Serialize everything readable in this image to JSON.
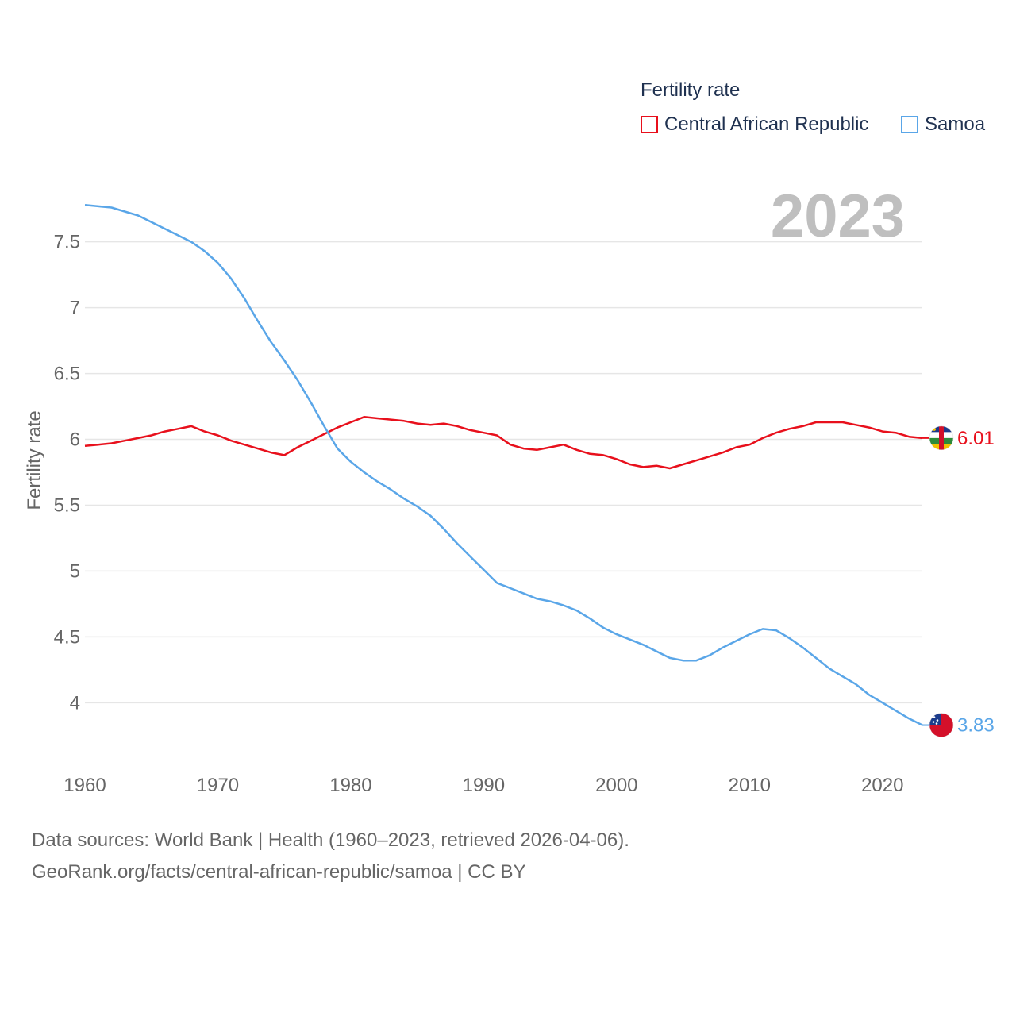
{
  "legend": {
    "title": "Fertility rate",
    "items": [
      {
        "label": "Central African Republic",
        "color": "#e8101c"
      },
      {
        "label": "Samoa",
        "color": "#5aa6e8"
      }
    ]
  },
  "footer": {
    "line1": "Data sources: World Bank | Health (1960–2023, retrieved 2026-04-06).",
    "line2": "GeoRank.org/facts/central-african-republic/samoa | CC BY"
  },
  "chart_data": {
    "type": "line",
    "year_label": "2023",
    "ylabel": "Fertility rate",
    "xlabel": "",
    "xlim": [
      1960,
      2023
    ],
    "ylim": [
      3.55,
      7.95
    ],
    "x_ticks": [
      1960,
      1970,
      1980,
      1990,
      2000,
      2010,
      2020
    ],
    "y_ticks": [
      4,
      4.5,
      5,
      5.5,
      6,
      6.5,
      7,
      7.5
    ],
    "grid": true,
    "x": [
      1960,
      1961,
      1962,
      1963,
      1964,
      1965,
      1966,
      1967,
      1968,
      1969,
      1970,
      1971,
      1972,
      1973,
      1974,
      1975,
      1976,
      1977,
      1978,
      1979,
      1980,
      1981,
      1982,
      1983,
      1984,
      1985,
      1986,
      1987,
      1988,
      1989,
      1990,
      1991,
      1992,
      1993,
      1994,
      1995,
      1996,
      1997,
      1998,
      1999,
      2000,
      2001,
      2002,
      2003,
      2004,
      2005,
      2006,
      2007,
      2008,
      2009,
      2010,
      2011,
      2012,
      2013,
      2014,
      2015,
      2016,
      2017,
      2018,
      2019,
      2020,
      2021,
      2022,
      2023
    ],
    "series": [
      {
        "name": "Central African Republic",
        "color": "#e8101c",
        "end_label": "6.01",
        "flag": "central-african-republic-flag-icon",
        "values": [
          5.95,
          5.96,
          5.97,
          5.99,
          6.01,
          6.03,
          6.06,
          6.08,
          6.1,
          6.06,
          6.03,
          5.99,
          5.96,
          5.93,
          5.9,
          5.88,
          5.94,
          5.99,
          6.04,
          6.09,
          6.13,
          6.17,
          6.16,
          6.15,
          6.14,
          6.12,
          6.11,
          6.12,
          6.1,
          6.07,
          6.05,
          6.03,
          5.96,
          5.93,
          5.92,
          5.94,
          5.96,
          5.92,
          5.89,
          5.88,
          5.85,
          5.81,
          5.79,
          5.8,
          5.78,
          5.81,
          5.84,
          5.87,
          5.9,
          5.94,
          5.96,
          6.01,
          6.05,
          6.08,
          6.1,
          6.13,
          6.13,
          6.13,
          6.11,
          6.09,
          6.06,
          6.05,
          6.02,
          6.01
        ]
      },
      {
        "name": "Samoa",
        "color": "#5aa6e8",
        "end_label": "3.83",
        "flag": "samoa-flag-icon",
        "values": [
          7.78,
          7.77,
          7.76,
          7.73,
          7.7,
          7.65,
          7.6,
          7.55,
          7.5,
          7.43,
          7.34,
          7.22,
          7.07,
          6.9,
          6.74,
          6.6,
          6.45,
          6.28,
          6.1,
          5.93,
          5.83,
          5.75,
          5.68,
          5.62,
          5.55,
          5.49,
          5.42,
          5.32,
          5.21,
          5.11,
          5.01,
          4.91,
          4.87,
          4.83,
          4.79,
          4.77,
          4.74,
          4.7,
          4.64,
          4.57,
          4.52,
          4.48,
          4.44,
          4.39,
          4.34,
          4.32,
          4.32,
          4.36,
          4.42,
          4.47,
          4.52,
          4.56,
          4.55,
          4.49,
          4.42,
          4.34,
          4.26,
          4.2,
          4.14,
          4.06,
          4.0,
          3.94,
          3.88,
          3.83
        ]
      }
    ]
  }
}
